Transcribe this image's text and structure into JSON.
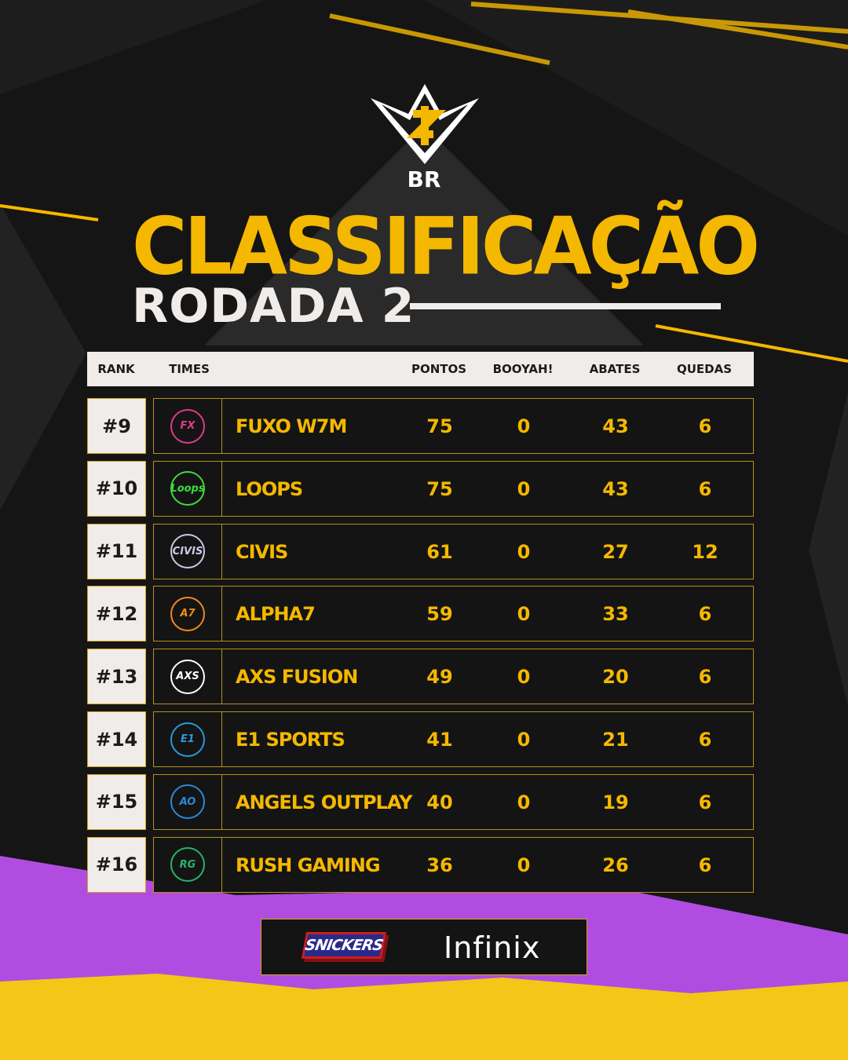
{
  "brand": {
    "region": "BR",
    "colors": {
      "accent": "#f5b800",
      "panel": "#f0ecea",
      "background": "#151515",
      "purple": "#b04de0"
    }
  },
  "title": "CLASSIFICAÇÃO",
  "subtitle": "RODADA 2",
  "table": {
    "headers": {
      "rank": "RANK",
      "teams": "TIMES",
      "points": "PONTOS",
      "booyah": "BOOYAH!",
      "kills": "ABATES",
      "drops": "QUEDAS"
    },
    "rows": [
      {
        "rank": "#9",
        "team": "FUXO W7M",
        "logo": "FX",
        "logo_color": "#e23a8a",
        "points": "75",
        "booyah": "0",
        "kills": "43",
        "drops": "6"
      },
      {
        "rank": "#10",
        "team": "LOOPS",
        "logo": "Loops",
        "logo_color": "#3ddc3d",
        "points": "75",
        "booyah": "0",
        "kills": "43",
        "drops": "6"
      },
      {
        "rank": "#11",
        "team": "CIVIS",
        "logo": "CIVIS",
        "logo_color": "#c9c9e8",
        "points": "61",
        "booyah": "0",
        "kills": "27",
        "drops": "12"
      },
      {
        "rank": "#12",
        "team": "ALPHA7",
        "logo": "A7",
        "logo_color": "#f28a1a",
        "points": "59",
        "booyah": "0",
        "kills": "33",
        "drops": "6"
      },
      {
        "rank": "#13",
        "team": "AXS FUSION",
        "logo": "AXS",
        "logo_color": "#ffffff",
        "points": "49",
        "booyah": "0",
        "kills": "20",
        "drops": "6"
      },
      {
        "rank": "#14",
        "team": "E1 SPORTS",
        "logo": "E1",
        "logo_color": "#2a9ad8",
        "points": "41",
        "booyah": "0",
        "kills": "21",
        "drops": "6"
      },
      {
        "rank": "#15",
        "team": "ANGELS OUTPLAY",
        "logo": "AO",
        "logo_color": "#2a8ad8",
        "points": "40",
        "booyah": "0",
        "kills": "19",
        "drops": "6"
      },
      {
        "rank": "#16",
        "team": "RUSH GAMING",
        "logo": "RG",
        "logo_color": "#2bb36a",
        "points": "36",
        "booyah": "0",
        "kills": "26",
        "drops": "6"
      }
    ]
  },
  "sponsors": [
    "SNICKERS",
    "Infinix"
  ]
}
